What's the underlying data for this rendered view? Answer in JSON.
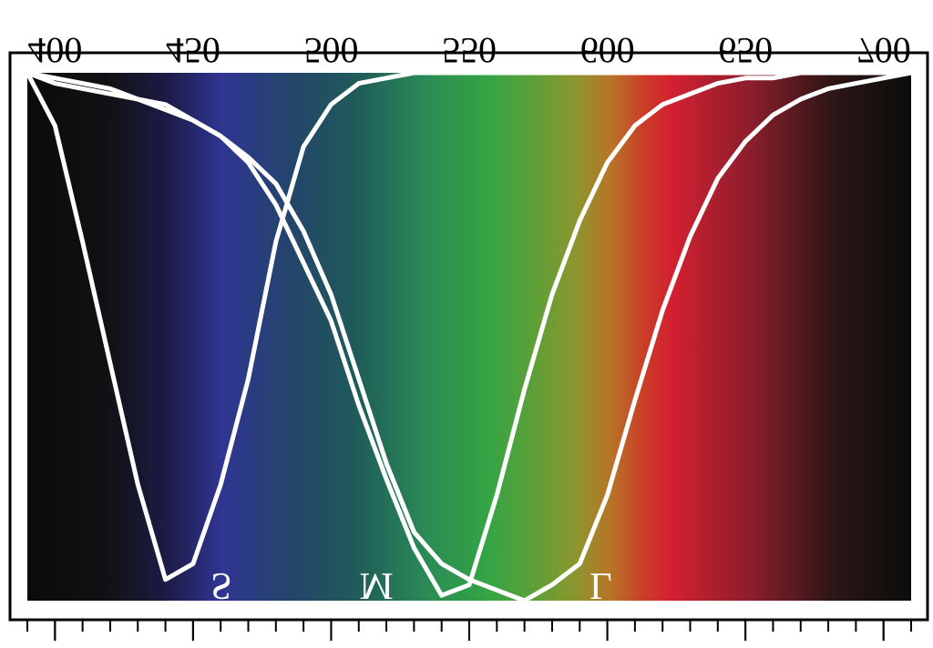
{
  "chart_data": {
    "type": "line",
    "x": [
      390,
      400,
      410,
      420,
      430,
      440,
      450,
      460,
      470,
      480,
      490,
      500,
      510,
      520,
      530,
      540,
      550,
      560,
      570,
      580,
      590,
      600,
      610,
      620,
      630,
      640,
      650,
      660,
      670,
      680,
      690,
      700,
      710
    ],
    "series": [
      {
        "name": "S",
        "color": "#ffffff",
        "values": [
          0,
          0.1,
          0.32,
          0.55,
          0.78,
          0.96,
          0.93,
          0.78,
          0.58,
          0.32,
          0.14,
          0.06,
          0.02,
          0.01,
          0,
          0,
          0,
          0,
          0,
          0,
          0,
          0,
          0,
          0,
          0,
          0,
          0,
          0,
          0,
          0,
          0,
          0,
          0
        ]
      },
      {
        "name": "M",
        "color": "#ffffff",
        "values": [
          0,
          0.02,
          0.03,
          0.04,
          0.05,
          0.06,
          0.09,
          0.12,
          0.17,
          0.25,
          0.36,
          0.47,
          0.63,
          0.77,
          0.9,
          0.99,
          0.97,
          0.8,
          0.6,
          0.42,
          0.28,
          0.17,
          0.1,
          0.06,
          0.04,
          0.02,
          0.01,
          0.01,
          0,
          0,
          0,
          0,
          0
        ]
      },
      {
        "name": "L",
        "color": "#ffffff",
        "values": [
          0,
          0.01,
          0.02,
          0.03,
          0.05,
          0.07,
          0.09,
          0.12,
          0.16,
          0.21,
          0.3,
          0.42,
          0.58,
          0.74,
          0.87,
          0.93,
          0.96,
          0.98,
          1.0,
          0.97,
          0.93,
          0.8,
          0.62,
          0.45,
          0.31,
          0.2,
          0.13,
          0.08,
          0.05,
          0.03,
          0.02,
          0.01,
          0
        ]
      }
    ],
    "xlim": [
      390,
      710
    ],
    "ylim": [
      0,
      1
    ],
    "xticks": [
      400,
      450,
      500,
      550,
      600,
      650,
      700
    ],
    "xminorticks": [
      390,
      400,
      410,
      420,
      430,
      440,
      450,
      460,
      470,
      480,
      490,
      500,
      510,
      520,
      530,
      540,
      550,
      560,
      570,
      580,
      590,
      600,
      610,
      620,
      630,
      640,
      650,
      660,
      670,
      680,
      690,
      700,
      710
    ],
    "y_inverted": true
  }
}
